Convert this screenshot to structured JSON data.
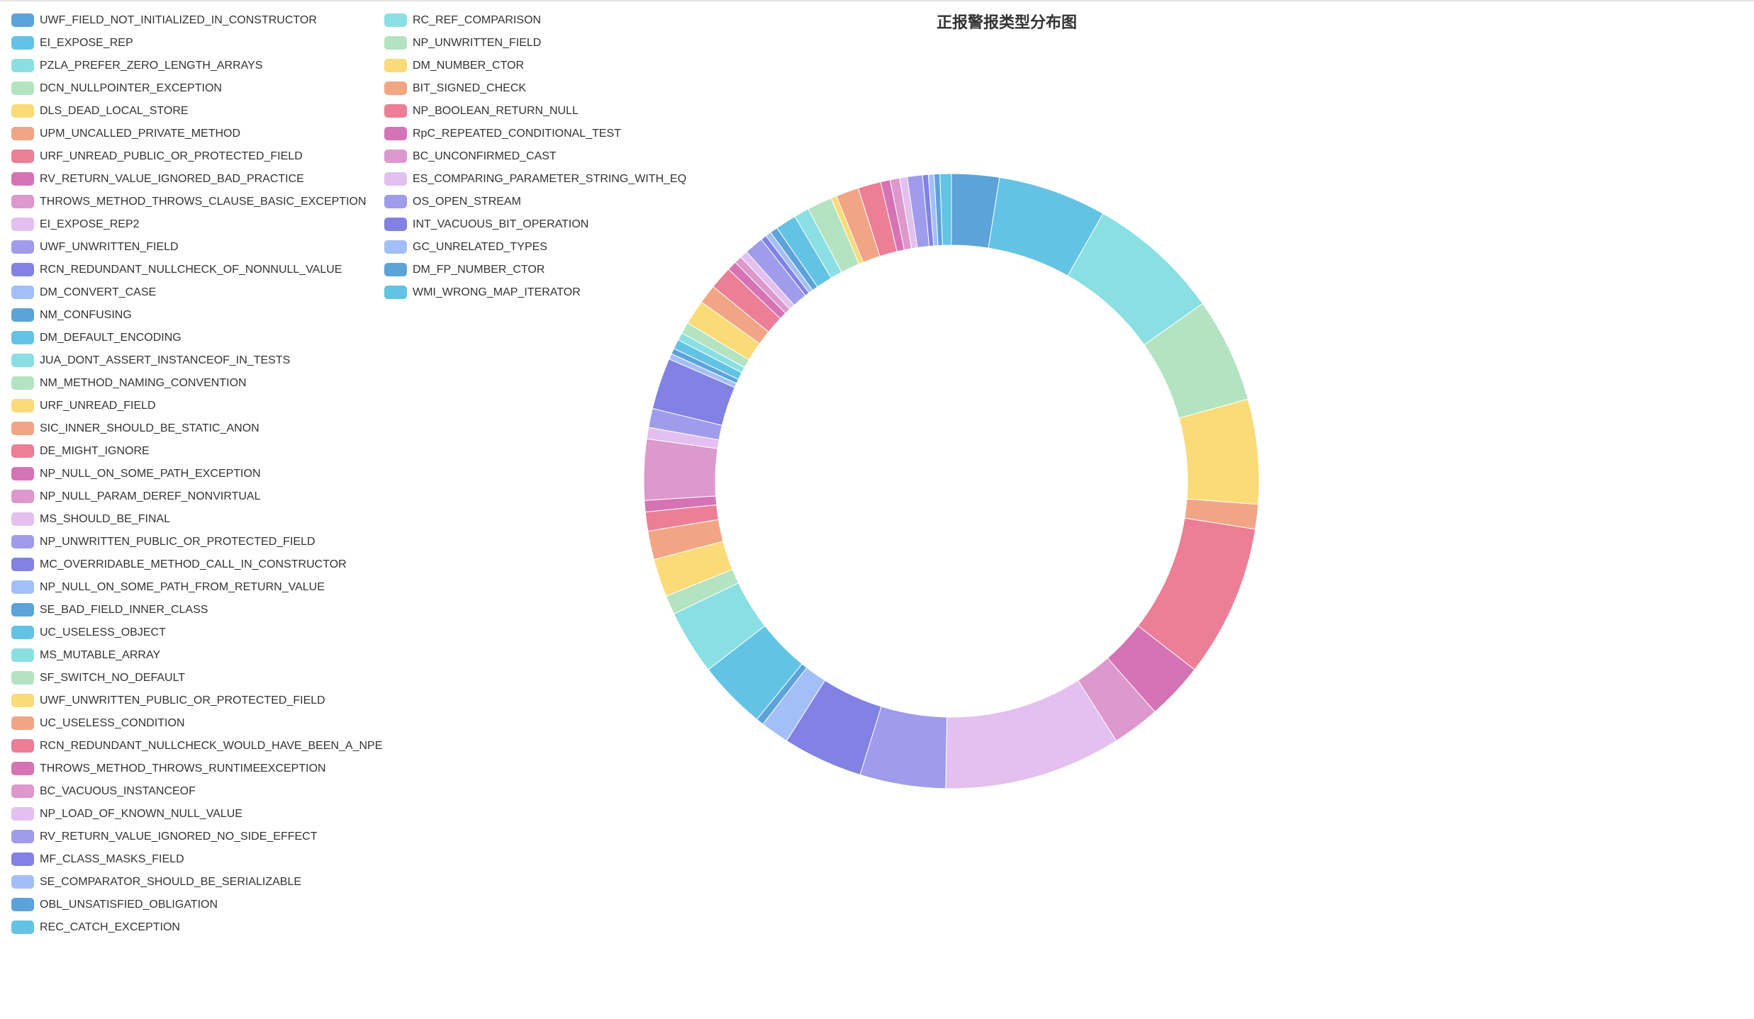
{
  "palette": [
    "#5ba3d9",
    "#63c3e4",
    "#8adfe3",
    "#b3e3c1",
    "#fadb78",
    "#f2a584",
    "#ec7e95",
    "#d673b5",
    "#dd98cd",
    "#e3c0ef",
    "#9e9ceb",
    "#8182e4",
    "#a3bff7"
  ],
  "chart_data": {
    "type": "pie",
    "donut": true,
    "title": "正报警报类型分布图",
    "legend_placement": "left",
    "categories": [
      "UWF_FIELD_NOT_INITIALIZED_IN_CONSTRUCTOR",
      "EI_EXPOSE_REP",
      "PZLA_PREFER_ZERO_LENGTH_ARRAYS",
      "DCN_NULLPOINTER_EXCEPTION",
      "DLS_DEAD_LOCAL_STORE",
      "UPM_UNCALLED_PRIVATE_METHOD",
      "URF_UNREAD_PUBLIC_OR_PROTECTED_FIELD",
      "RV_RETURN_VALUE_IGNORED_BAD_PRACTICE",
      "THROWS_METHOD_THROWS_CLAUSE_BASIC_EXCEPTION",
      "EI_EXPOSE_REP2",
      "UWF_UNWRITTEN_FIELD",
      "RCN_REDUNDANT_NULLCHECK_OF_NONNULL_VALUE",
      "DM_CONVERT_CASE",
      "NM_CONFUSING",
      "DM_DEFAULT_ENCODING",
      "JUA_DONT_ASSERT_INSTANCEOF_IN_TESTS",
      "NM_METHOD_NAMING_CONVENTION",
      "URF_UNREAD_FIELD",
      "SIC_INNER_SHOULD_BE_STATIC_ANON",
      "DE_MIGHT_IGNORE",
      "NP_NULL_ON_SOME_PATH_EXCEPTION",
      "NP_NULL_PARAM_DEREF_NONVIRTUAL",
      "MS_SHOULD_BE_FINAL",
      "NP_UNWRITTEN_PUBLIC_OR_PROTECTED_FIELD",
      "MC_OVERRIDABLE_METHOD_CALL_IN_CONSTRUCTOR",
      "NP_NULL_ON_SOME_PATH_FROM_RETURN_VALUE",
      "SE_BAD_FIELD_INNER_CLASS",
      "UC_USELESS_OBJECT",
      "MS_MUTABLE_ARRAY",
      "SF_SWITCH_NO_DEFAULT",
      "UWF_UNWRITTEN_PUBLIC_OR_PROTECTED_FIELD",
      "UC_USELESS_CONDITION",
      "RCN_REDUNDANT_NULLCHECK_WOULD_HAVE_BEEN_A_NPE",
      "THROWS_METHOD_THROWS_RUNTIMEEXCEPTION",
      "BC_VACUOUS_INSTANCEOF",
      "NP_LOAD_OF_KNOWN_NULL_VALUE",
      "RV_RETURN_VALUE_IGNORED_NO_SIDE_EFFECT",
      "MF_CLASS_MASKS_FIELD",
      "SE_COMPARATOR_SHOULD_BE_SERIALIZABLE",
      "OBL_UNSATISFIED_OBLIGATION",
      "REC_CATCH_EXCEPTION",
      "RC_REF_COMPARISON",
      "NP_UNWRITTEN_FIELD",
      "DM_NUMBER_CTOR",
      "BIT_SIGNED_CHECK",
      "NP_BOOLEAN_RETURN_NULL",
      "RpC_REPEATED_CONDITIONAL_TEST",
      "BC_UNCONFIRMED_CAST",
      "ES_COMPARING_PARAMETER_STRING_WITH_EQ",
      "OS_OPEN_STREAM",
      "INT_VACUOUS_BIT_OPERATION",
      "GC_UNRELATED_TYPES",
      "DM_FP_NUMBER_CTOR",
      "WMI_WRONG_MAP_ITERATOR"
    ],
    "values": [
      25,
      57,
      70,
      55,
      55,
      13,
      80,
      30,
      25,
      93,
      45,
      42,
      15,
      4,
      36,
      34,
      10,
      20,
      15,
      10,
      6,
      32,
      6,
      10,
      27,
      3,
      3,
      5,
      4,
      6,
      13,
      10,
      12,
      5,
      4,
      4,
      10,
      3,
      3,
      4,
      11,
      8,
      13,
      3,
      12,
      12,
      5,
      5,
      4,
      8,
      3,
      3,
      3,
      6
    ]
  }
}
